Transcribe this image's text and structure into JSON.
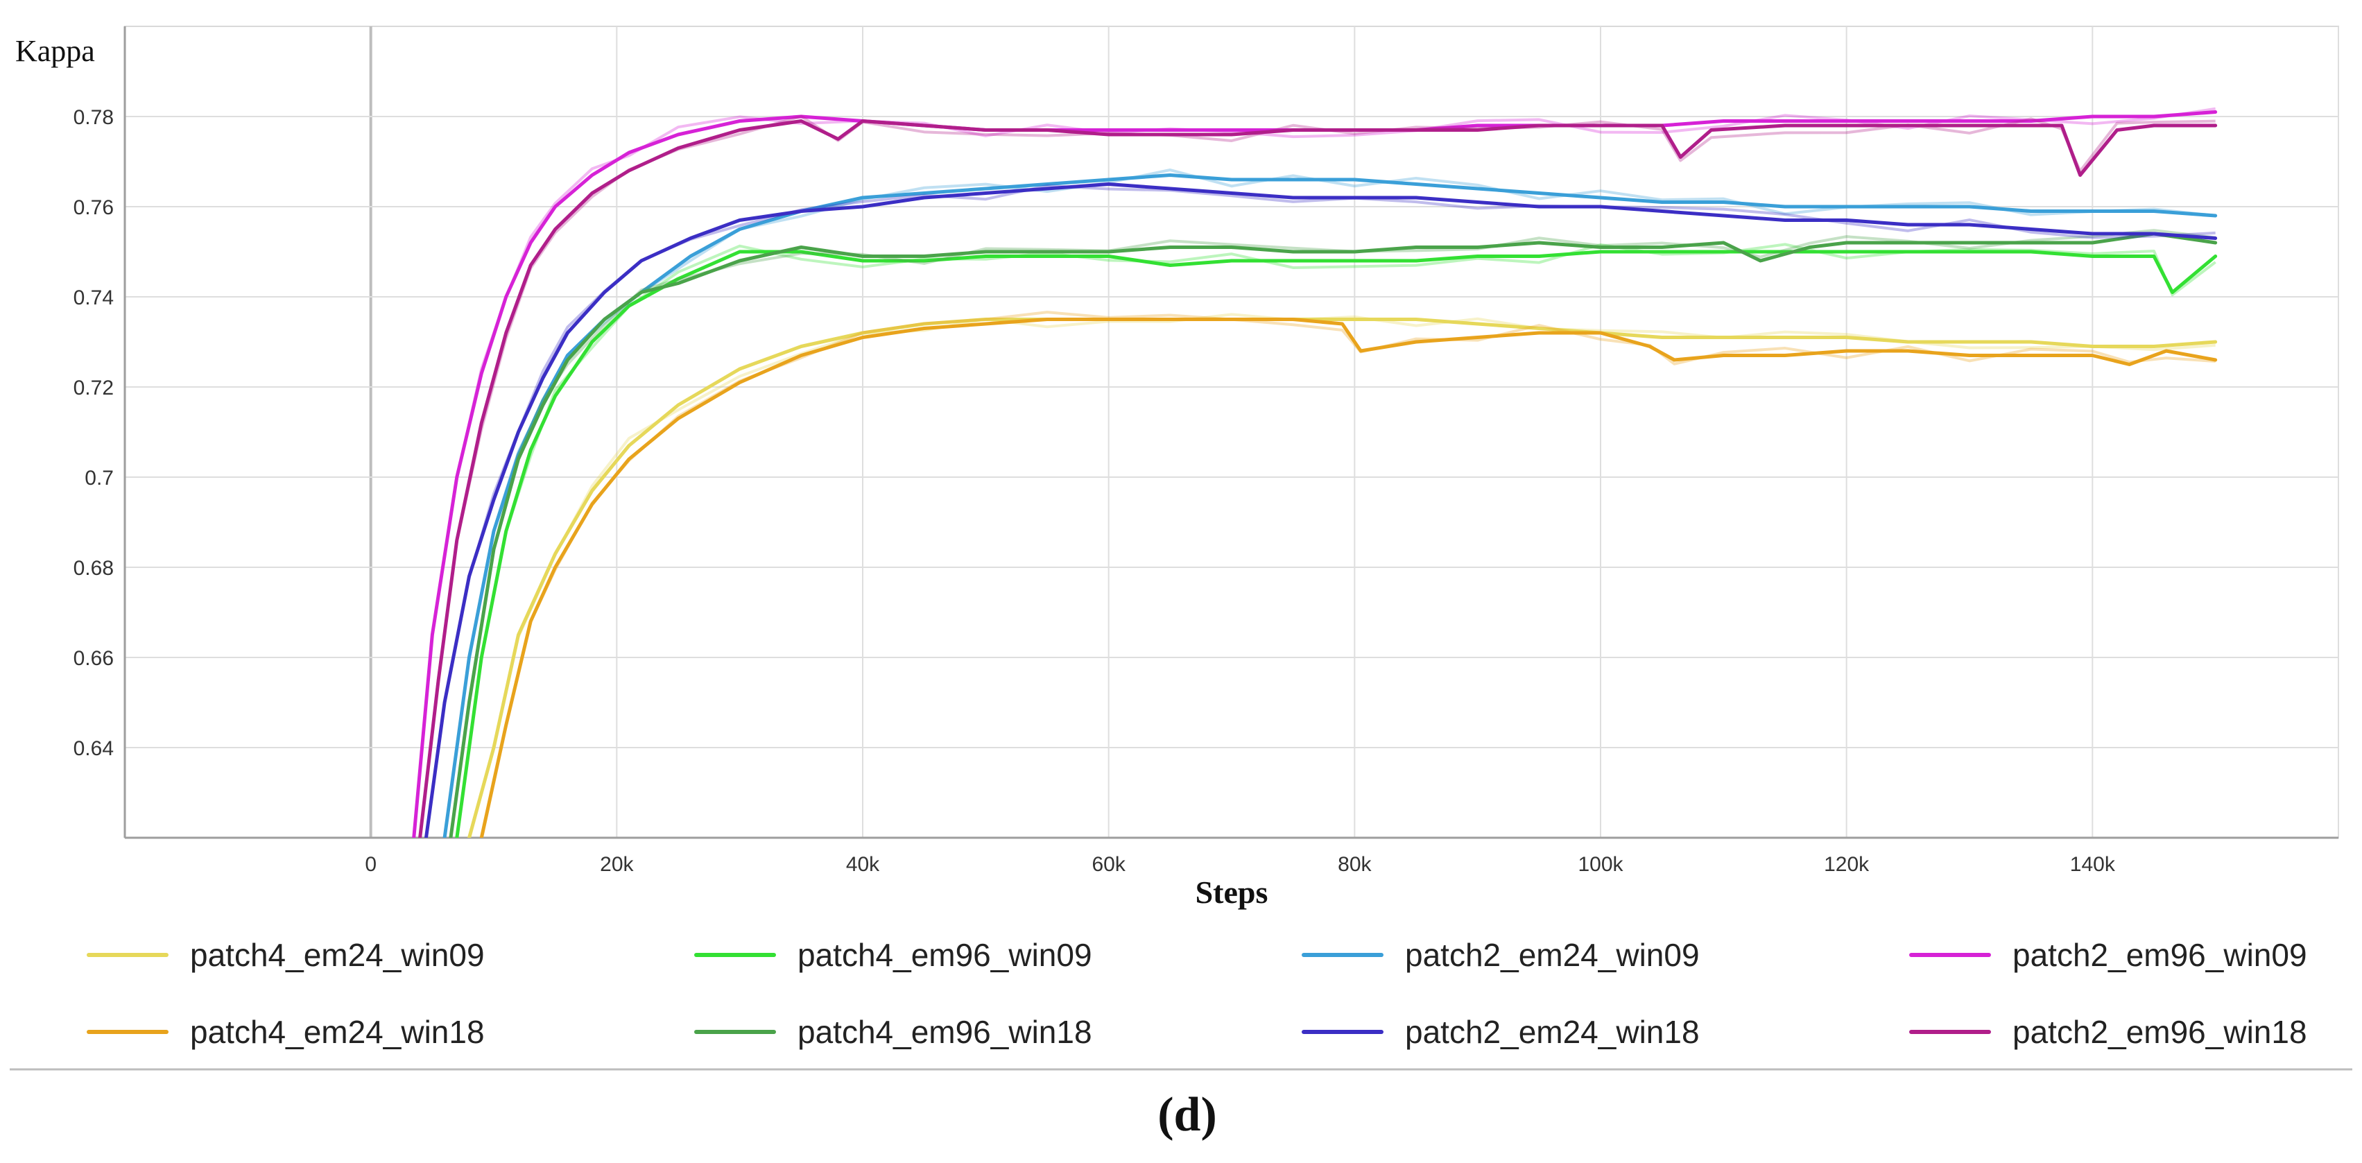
{
  "chart_data": {
    "type": "line",
    "title": "",
    "xlabel": "Steps",
    "ylabel": "Kappa",
    "panel_label": "(d)",
    "xlim": [
      -20000,
      160000
    ],
    "ylim": [
      0.62,
      0.8
    ],
    "grid": true,
    "legend_position": "bottom",
    "x_ticks": [
      {
        "value": 0,
        "label": "0"
      },
      {
        "value": 20000,
        "label": "20k"
      },
      {
        "value": 40000,
        "label": "40k"
      },
      {
        "value": 60000,
        "label": "60k"
      },
      {
        "value": 80000,
        "label": "80k"
      },
      {
        "value": 100000,
        "label": "100k"
      },
      {
        "value": 120000,
        "label": "120k"
      },
      {
        "value": 140000,
        "label": "140k"
      }
    ],
    "y_ticks": [
      {
        "value": 0.64,
        "label": "0.64"
      },
      {
        "value": 0.66,
        "label": "0.66"
      },
      {
        "value": 0.68,
        "label": "0.68"
      },
      {
        "value": 0.7,
        "label": "0.7"
      },
      {
        "value": 0.72,
        "label": "0.72"
      },
      {
        "value": 0.74,
        "label": "0.74"
      },
      {
        "value": 0.76,
        "label": "0.76"
      },
      {
        "value": 0.78,
        "label": "0.78"
      }
    ],
    "series": [
      {
        "name": "patch4_em24_win09",
        "color": "#e6d85a",
        "x": [
          8000,
          10000,
          12000,
          15000,
          18000,
          21000,
          25000,
          30000,
          35000,
          40000,
          45000,
          50000,
          55000,
          60000,
          65000,
          70000,
          75000,
          80000,
          85000,
          90000,
          95000,
          100000,
          105000,
          110000,
          115000,
          120000,
          125000,
          130000,
          135000,
          140000,
          145000,
          150000
        ],
        "y": [
          0.62,
          0.64,
          0.665,
          0.683,
          0.697,
          0.707,
          0.716,
          0.724,
          0.729,
          0.732,
          0.734,
          0.735,
          0.735,
          0.735,
          0.735,
          0.735,
          0.735,
          0.735,
          0.735,
          0.734,
          0.733,
          0.732,
          0.731,
          0.731,
          0.731,
          0.731,
          0.73,
          0.73,
          0.73,
          0.729,
          0.729,
          0.73
        ]
      },
      {
        "name": "patch4_em96_win09",
        "color": "#33e033",
        "x": [
          7000,
          9000,
          11000,
          13000,
          15000,
          18000,
          21000,
          25000,
          30000,
          35000,
          40000,
          45000,
          50000,
          55000,
          60000,
          65000,
          70000,
          75000,
          80000,
          85000,
          90000,
          95000,
          100000,
          105000,
          110000,
          115000,
          120000,
          125000,
          130000,
          135000,
          140000,
          145000,
          146500,
          150000
        ],
        "y": [
          0.62,
          0.66,
          0.688,
          0.706,
          0.718,
          0.73,
          0.738,
          0.744,
          0.75,
          0.75,
          0.748,
          0.748,
          0.749,
          0.749,
          0.749,
          0.747,
          0.748,
          0.748,
          0.748,
          0.748,
          0.749,
          0.749,
          0.75,
          0.75,
          0.75,
          0.75,
          0.75,
          0.75,
          0.75,
          0.75,
          0.749,
          0.749,
          0.741,
          0.749
        ]
      },
      {
        "name": "patch2_em24_win09",
        "color": "#3a9fd8",
        "x": [
          6000,
          8000,
          10000,
          12000,
          14000,
          16000,
          19000,
          22000,
          26000,
          30000,
          35000,
          40000,
          45000,
          50000,
          55000,
          60000,
          65000,
          70000,
          75000,
          80000,
          85000,
          90000,
          95000,
          100000,
          105000,
          110000,
          115000,
          120000,
          125000,
          130000,
          135000,
          140000,
          145000,
          150000
        ],
        "y": [
          0.62,
          0.66,
          0.688,
          0.705,
          0.717,
          0.727,
          0.735,
          0.741,
          0.749,
          0.755,
          0.759,
          0.762,
          0.763,
          0.764,
          0.765,
          0.766,
          0.767,
          0.766,
          0.766,
          0.766,
          0.765,
          0.764,
          0.763,
          0.762,
          0.761,
          0.761,
          0.76,
          0.76,
          0.76,
          0.76,
          0.759,
          0.759,
          0.759,
          0.758
        ]
      },
      {
        "name": "patch2_em96_win09",
        "color": "#d622d6",
        "x": [
          3500,
          5000,
          7000,
          9000,
          11000,
          13000,
          15000,
          18000,
          21000,
          25000,
          30000,
          35000,
          40000,
          45000,
          50000,
          55000,
          60000,
          65000,
          70000,
          75000,
          80000,
          85000,
          90000,
          95000,
          100000,
          105000,
          110000,
          115000,
          120000,
          125000,
          130000,
          135000,
          140000,
          145000,
          150000
        ],
        "y": [
          0.62,
          0.665,
          0.7,
          0.723,
          0.74,
          0.752,
          0.76,
          0.767,
          0.772,
          0.776,
          0.779,
          0.78,
          0.779,
          0.778,
          0.777,
          0.777,
          0.777,
          0.777,
          0.777,
          0.777,
          0.777,
          0.777,
          0.778,
          0.778,
          0.778,
          0.778,
          0.779,
          0.779,
          0.779,
          0.779,
          0.779,
          0.779,
          0.78,
          0.78,
          0.781
        ]
      },
      {
        "name": "patch4_em24_win18",
        "color": "#e8a31c",
        "x": [
          9000,
          11000,
          13000,
          15000,
          18000,
          21000,
          25000,
          30000,
          35000,
          40000,
          45000,
          50000,
          55000,
          60000,
          65000,
          70000,
          75000,
          79000,
          80500,
          85000,
          90000,
          95000,
          100000,
          104000,
          106000,
          110000,
          115000,
          120000,
          125000,
          130000,
          135000,
          140000,
          143000,
          146000,
          150000
        ],
        "y": [
          0.62,
          0.645,
          0.668,
          0.68,
          0.694,
          0.704,
          0.713,
          0.721,
          0.727,
          0.731,
          0.733,
          0.734,
          0.735,
          0.735,
          0.735,
          0.735,
          0.735,
          0.734,
          0.728,
          0.73,
          0.731,
          0.732,
          0.732,
          0.729,
          0.726,
          0.727,
          0.727,
          0.728,
          0.728,
          0.727,
          0.727,
          0.727,
          0.725,
          0.728,
          0.726
        ]
      },
      {
        "name": "patch4_em96_win18",
        "color": "#4aa34a",
        "x": [
          6500,
          8000,
          10000,
          12000,
          14000,
          16000,
          19000,
          22000,
          25000,
          30000,
          35000,
          40000,
          45000,
          50000,
          55000,
          60000,
          65000,
          70000,
          75000,
          80000,
          85000,
          90000,
          95000,
          100000,
          105000,
          110000,
          113000,
          117000,
          120000,
          125000,
          130000,
          135000,
          140000,
          145000,
          150000
        ],
        "y": [
          0.62,
          0.65,
          0.684,
          0.704,
          0.716,
          0.726,
          0.735,
          0.741,
          0.743,
          0.748,
          0.751,
          0.749,
          0.749,
          0.75,
          0.75,
          0.75,
          0.751,
          0.751,
          0.75,
          0.75,
          0.751,
          0.751,
          0.752,
          0.751,
          0.751,
          0.752,
          0.748,
          0.751,
          0.752,
          0.752,
          0.752,
          0.752,
          0.752,
          0.754,
          0.752
        ]
      },
      {
        "name": "patch2_em24_win18",
        "color": "#3b2ec4",
        "x": [
          4500,
          6000,
          8000,
          10000,
          12000,
          14000,
          16000,
          19000,
          22000,
          26000,
          30000,
          35000,
          40000,
          45000,
          50000,
          55000,
          60000,
          65000,
          70000,
          75000,
          80000,
          85000,
          90000,
          95000,
          100000,
          105000,
          110000,
          115000,
          120000,
          125000,
          130000,
          135000,
          140000,
          145000,
          150000
        ],
        "y": [
          0.62,
          0.65,
          0.678,
          0.695,
          0.71,
          0.722,
          0.732,
          0.741,
          0.748,
          0.753,
          0.757,
          0.759,
          0.76,
          0.762,
          0.763,
          0.764,
          0.765,
          0.764,
          0.763,
          0.762,
          0.762,
          0.762,
          0.761,
          0.76,
          0.76,
          0.759,
          0.758,
          0.757,
          0.757,
          0.756,
          0.756,
          0.755,
          0.754,
          0.754,
          0.753
        ]
      },
      {
        "name": "patch2_em96_win18",
        "color": "#b01e8a",
        "x": [
          4000,
          5500,
          7000,
          9000,
          11000,
          13000,
          15000,
          18000,
          21000,
          25000,
          30000,
          35000,
          38000,
          40000,
          45000,
          50000,
          55000,
          60000,
          65000,
          70000,
          75000,
          80000,
          85000,
          90000,
          95000,
          100000,
          105000,
          106500,
          109000,
          115000,
          120000,
          125000,
          130000,
          135000,
          137500,
          139000,
          142000,
          145000,
          150000
        ],
        "y": [
          0.62,
          0.655,
          0.686,
          0.712,
          0.732,
          0.747,
          0.755,
          0.763,
          0.768,
          0.773,
          0.777,
          0.779,
          0.775,
          0.779,
          0.778,
          0.777,
          0.777,
          0.776,
          0.776,
          0.776,
          0.777,
          0.777,
          0.777,
          0.777,
          0.778,
          0.778,
          0.778,
          0.771,
          0.777,
          0.778,
          0.778,
          0.778,
          0.778,
          0.778,
          0.778,
          0.767,
          0.777,
          0.778,
          0.778
        ]
      }
    ]
  }
}
